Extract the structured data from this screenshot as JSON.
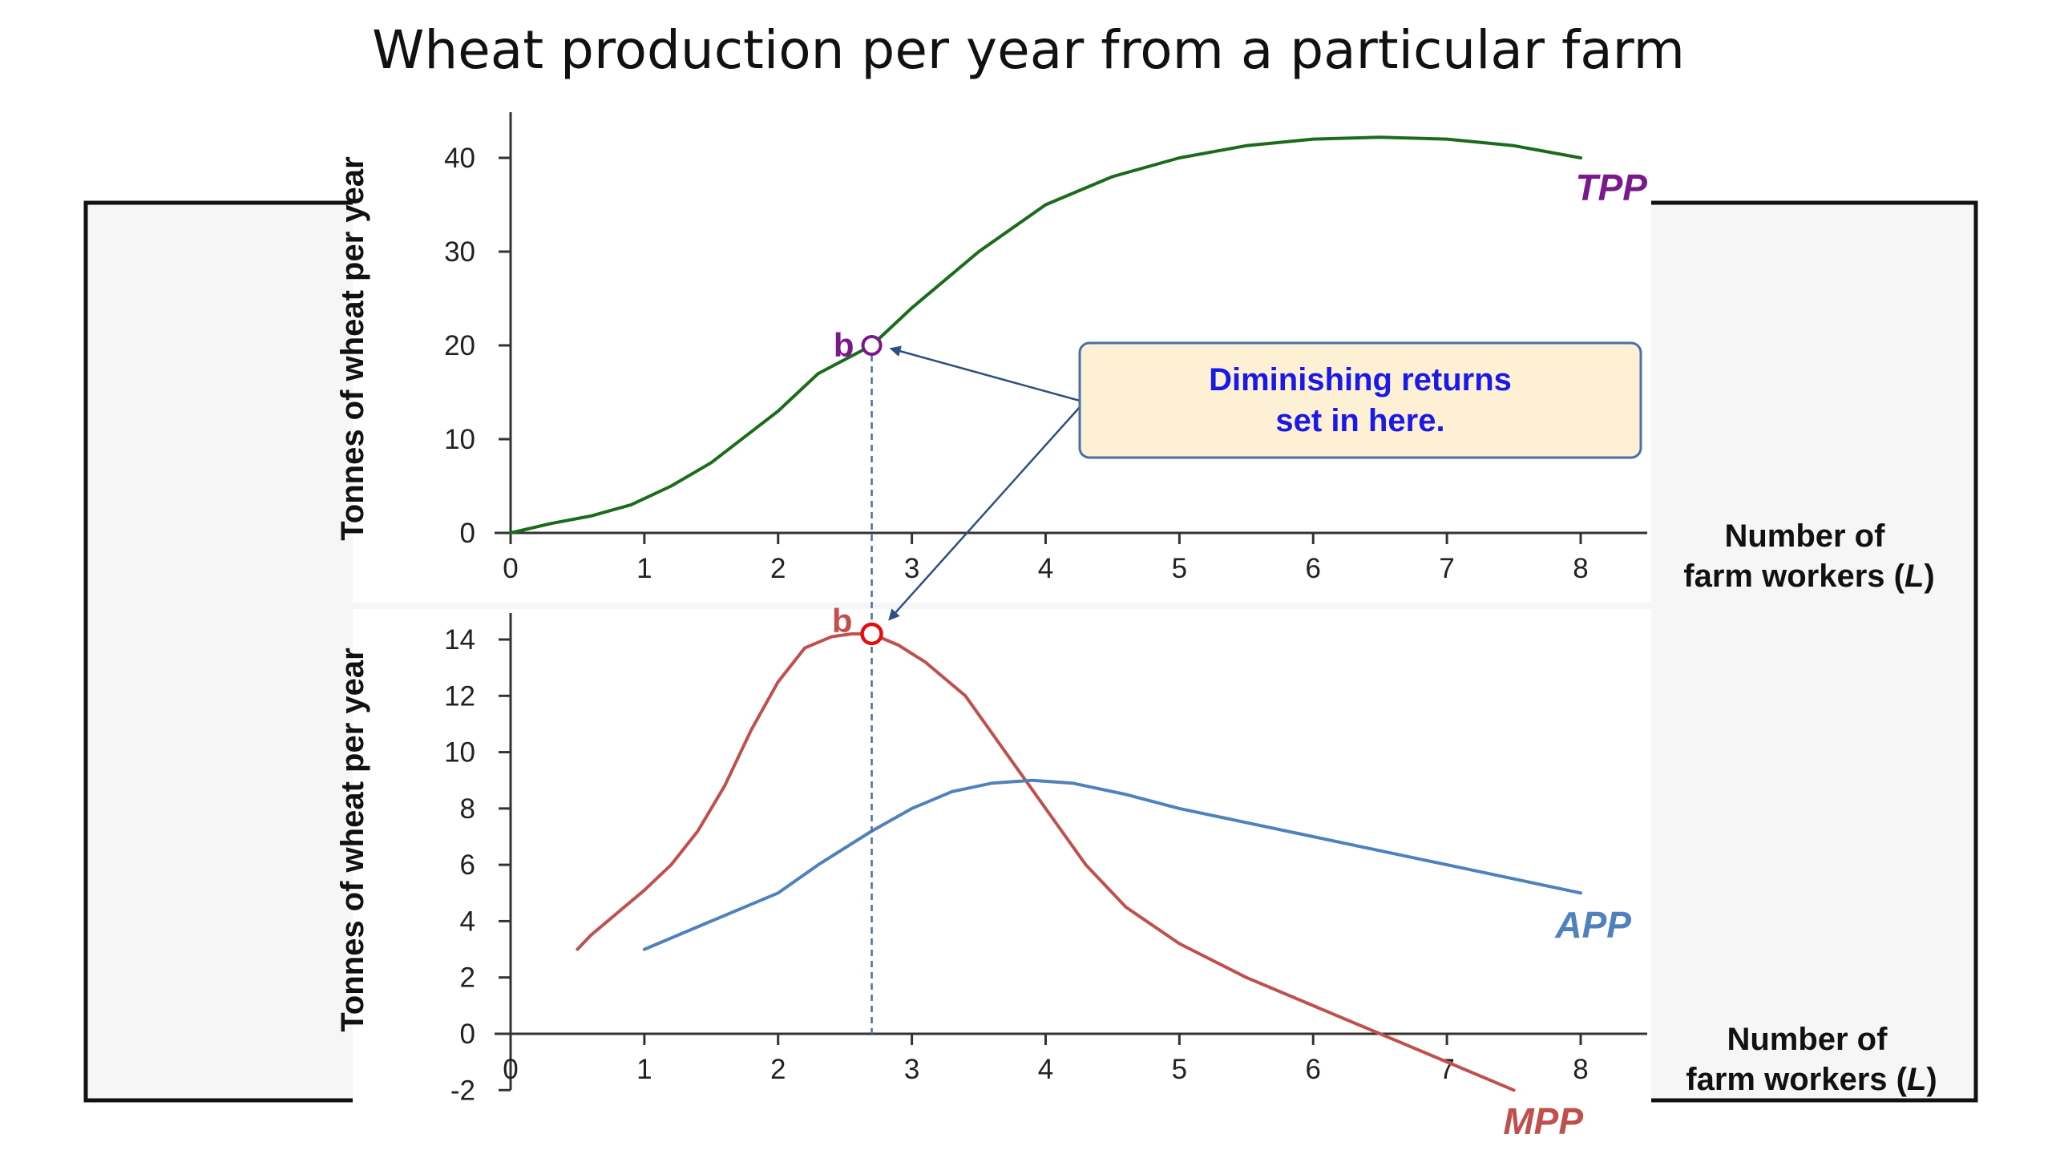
{
  "title": "Wheat production per year from a particular farm",
  "colors": {
    "tpp": "#1a6b1a",
    "mpp": "#c0504d",
    "app": "#4f81bd",
    "tpp_label": "#7a1a8a",
    "point_b_top": "#7a1a8a",
    "point_b_bottom": "#c0504d",
    "callout_text": "#1a1ae6",
    "callout_fill": "#fdf0d5",
    "callout_border": "#4a6fa5",
    "arrow": "#2f4f7f",
    "guide": "#4a6fa5"
  },
  "callout": {
    "line1": "Diminishing returns",
    "line2": "set in here."
  },
  "chart_data": [
    {
      "type": "line",
      "ylabel": "Tonnes of wheat  per year",
      "xlabel_line1": "Number of",
      "xlabel_line2": "farm workers (",
      "xlabel_var": "L",
      "xlabel_close": ")",
      "xlim": [
        0,
        8
      ],
      "ylim": [
        0,
        45
      ],
      "x_ticks": [
        "0",
        "1",
        "2",
        "3",
        "4",
        "5",
        "6",
        "7",
        "8"
      ],
      "y_ticks": [
        "0",
        "10",
        "20",
        "30",
        "40"
      ],
      "grid": false,
      "series": [
        {
          "name": "TPP",
          "x": [
            0,
            0.3,
            0.6,
            0.9,
            1.2,
            1.5,
            2.0,
            2.3,
            2.7,
            3.0,
            3.5,
            4.0,
            4.5,
            5.0,
            5.5,
            6.0,
            6.5,
            7.0,
            7.5,
            8.0
          ],
          "y": [
            0,
            1,
            1.8,
            3,
            5,
            7.5,
            13,
            17,
            20,
            24,
            30,
            35,
            38,
            40,
            41.3,
            42,
            42.2,
            42,
            41.3,
            40
          ]
        }
      ],
      "point": {
        "label": "b",
        "x": 2.7,
        "y": 20
      }
    },
    {
      "type": "line",
      "ylabel": "Tonnes of wheat  per year",
      "xlabel_line1": "Number of",
      "xlabel_line2": "farm workers (",
      "xlabel_var": "L",
      "xlabel_close": ")",
      "xlim": [
        0,
        8
      ],
      "ylim": [
        -2,
        15
      ],
      "x_ticks": [
        "0",
        "1",
        "2",
        "3",
        "4",
        "5",
        "6",
        "7",
        "8"
      ],
      "y_ticks": [
        "-2",
        "0",
        "2",
        "4",
        "6",
        "8",
        "10",
        "12",
        "14"
      ],
      "grid": false,
      "series": [
        {
          "name": "MPP",
          "x": [
            0.5,
            0.6,
            0.8,
            1.0,
            1.2,
            1.4,
            1.6,
            1.8,
            2.0,
            2.2,
            2.4,
            2.55,
            2.7,
            2.9,
            3.1,
            3.4,
            3.7,
            4.0,
            4.3,
            4.6,
            5.0,
            5.5,
            6.0,
            6.5,
            7.0,
            7.5
          ],
          "y": [
            3,
            3.5,
            4.3,
            5.1,
            6,
            7.2,
            8.8,
            10.8,
            12.5,
            13.7,
            14.1,
            14.2,
            14.2,
            13.8,
            13.2,
            12,
            10,
            8,
            6,
            4.5,
            3.2,
            2,
            1,
            0,
            -1,
            -2
          ]
        },
        {
          "name": "APP",
          "x": [
            1.0,
            1.5,
            2.0,
            2.3,
            2.7,
            3.0,
            3.3,
            3.6,
            3.9,
            4.2,
            4.6,
            5.0,
            5.5,
            6.0,
            6.5,
            7.0,
            7.5,
            8.0
          ],
          "y": [
            3,
            4,
            5,
            6,
            7.2,
            8,
            8.6,
            8.9,
            9,
            8.9,
            8.5,
            8,
            7.5,
            7,
            6.5,
            6,
            5.5,
            5
          ]
        }
      ],
      "point": {
        "label": "b",
        "x": 2.7,
        "y": 14.2
      }
    }
  ]
}
